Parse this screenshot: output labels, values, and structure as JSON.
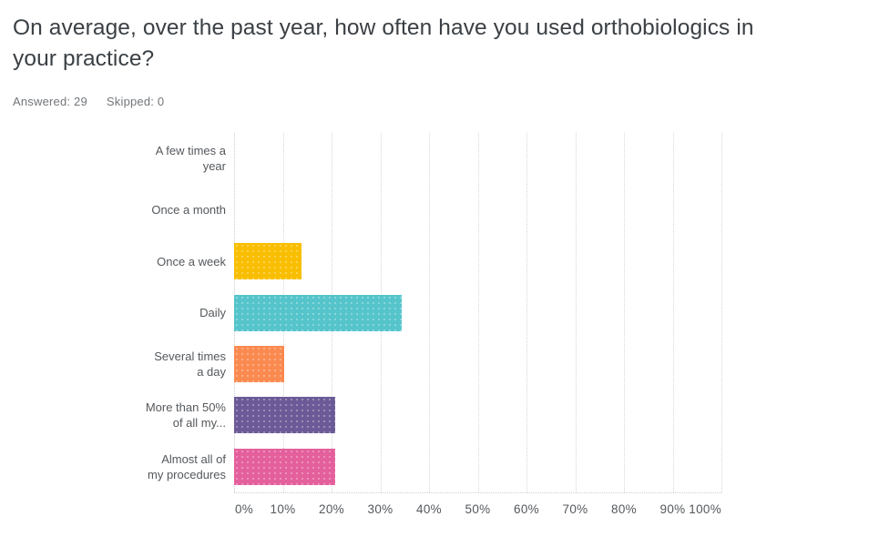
{
  "header": {
    "title": "On average, over the past year, how often have you used orthobiologics in\nyour practice?",
    "answered": "Answered: 29",
    "skipped": "Skipped: 0"
  },
  "chart_data": {
    "type": "bar",
    "orientation": "horizontal",
    "title": "On average, over the past year, how often have you used orthobiologics in your practice?",
    "answered_count": 29,
    "skipped_count": 0,
    "xlabel": "",
    "ylabel": "",
    "xlim": [
      0,
      100
    ],
    "x_ticks": [
      "0%",
      "10%",
      "20%",
      "30%",
      "40%",
      "50%",
      "60%",
      "70%",
      "80%",
      "90%",
      "100%"
    ],
    "grid": "vertical-dotted",
    "legend": "none",
    "categories": [
      {
        "label": "A few times a\nyear",
        "value": 0,
        "color": null
      },
      {
        "label": "Once a month",
        "value": 0,
        "color": null
      },
      {
        "label": "Once a week",
        "value": 13.79,
        "color": "#f9be00"
      },
      {
        "label": "Daily",
        "value": 34.48,
        "color": "#55c4cb"
      },
      {
        "label": "Several times\na day",
        "value": 10.34,
        "color": "#fa8a50"
      },
      {
        "label": "More than 50%\nof all my...",
        "value": 20.69,
        "color": "#6b5a97"
      },
      {
        "label": "Almost all of\nmy procedures",
        "value": 20.69,
        "color": "#e4609c"
      }
    ]
  }
}
